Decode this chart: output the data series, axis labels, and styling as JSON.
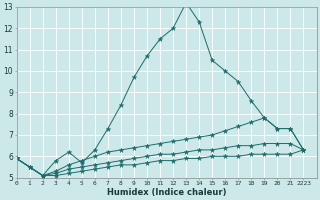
{
  "xlabel": "Humidex (Indice chaleur)",
  "background_color": "#cce8e8",
  "grid_color": "#ffffff",
  "line_color": "#1e6b6b",
  "xlim": [
    0,
    23
  ],
  "ylim": [
    5,
    13
  ],
  "xtick_labels": [
    "0",
    "1",
    "2",
    "3",
    "4",
    "5",
    "6",
    "7",
    "8",
    "9",
    "10",
    "11",
    "12",
    "13",
    "14",
    "15",
    "16",
    "17",
    "18",
    "19",
    "20",
    "21",
    "2223"
  ],
  "yticks": [
    5,
    6,
    7,
    8,
    9,
    10,
    11,
    12,
    13
  ],
  "series": [
    {
      "x": [
        0,
        1,
        2,
        3,
        4,
        5,
        6,
        7,
        8,
        9,
        10,
        11,
        12,
        13,
        14,
        15,
        16,
        17,
        18,
        19,
        20,
        21,
        22
      ],
      "y": [
        5.9,
        5.5,
        5.1,
        5.8,
        6.2,
        5.7,
        6.3,
        7.3,
        8.4,
        9.7,
        10.7,
        11.5,
        12.0,
        13.2,
        12.3,
        10.5,
        10.0,
        9.5,
        8.6,
        7.8,
        7.3,
        7.3,
        6.3
      ]
    },
    {
      "x": [
        0,
        1,
        2,
        3,
        4,
        5,
        6,
        7,
        8,
        9,
        10,
        11,
        12,
        13,
        14,
        15,
        16,
        17,
        18,
        19,
        20,
        21,
        22
      ],
      "y": [
        5.9,
        5.5,
        5.1,
        5.3,
        5.6,
        5.8,
        6.0,
        6.2,
        6.3,
        6.4,
        6.5,
        6.6,
        6.7,
        6.8,
        6.9,
        7.0,
        7.2,
        7.4,
        7.6,
        7.8,
        7.3,
        7.3,
        6.3
      ]
    },
    {
      "x": [
        0,
        1,
        2,
        3,
        4,
        5,
        6,
        7,
        8,
        9,
        10,
        11,
        12,
        13,
        14,
        15,
        16,
        17,
        18,
        19,
        20,
        21,
        22
      ],
      "y": [
        5.9,
        5.5,
        5.1,
        5.2,
        5.4,
        5.5,
        5.6,
        5.7,
        5.8,
        5.9,
        6.0,
        6.1,
        6.1,
        6.2,
        6.3,
        6.3,
        6.4,
        6.5,
        6.5,
        6.6,
        6.6,
        6.6,
        6.3
      ]
    },
    {
      "x": [
        0,
        1,
        2,
        3,
        4,
        5,
        6,
        7,
        8,
        9,
        10,
        11,
        12,
        13,
        14,
        15,
        16,
        17,
        18,
        19,
        20,
        21,
        22
      ],
      "y": [
        5.9,
        5.5,
        5.1,
        5.1,
        5.2,
        5.3,
        5.4,
        5.5,
        5.6,
        5.6,
        5.7,
        5.8,
        5.8,
        5.9,
        5.9,
        6.0,
        6.0,
        6.0,
        6.1,
        6.1,
        6.1,
        6.1,
        6.3
      ]
    }
  ]
}
